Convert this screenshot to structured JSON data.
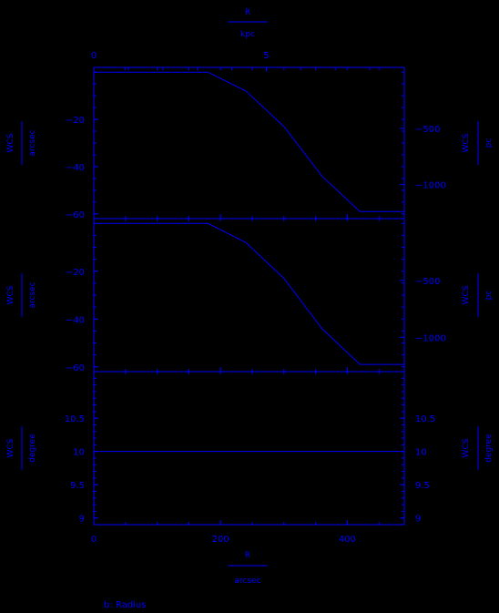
{
  "chart_data": {
    "type": "line",
    "color": "#0000ff",
    "background": "#000000",
    "caption": "b: Radius",
    "x_axis": {
      "label": "R",
      "unit": "arcsec",
      "range": [
        0,
        490
      ],
      "ticks": [
        0,
        200,
        400
      ],
      "minor_step": 50
    },
    "top_axis": {
      "label": "R",
      "unit": "kpc",
      "range": [
        0,
        9
      ],
      "ticks": [
        0,
        5
      ],
      "minor_step": 1
    },
    "panels": [
      {
        "id": "panel-1",
        "left_label": "WCS",
        "left_unit": "arcsec",
        "right_label": "WCS",
        "right_unit": "pc",
        "y_range": [
          -62,
          2
        ],
        "left_ticks": [
          -20,
          -40,
          -60
        ],
        "left_minor_step": 5,
        "right_ticks": [
          -500,
          -1000
        ],
        "right_scale": 21,
        "x": [
          0,
          60,
          120,
          180,
          240,
          300,
          360,
          420,
          490
        ],
        "y": [
          0,
          0,
          0,
          0,
          -8,
          -23,
          -44,
          -59,
          -59
        ]
      },
      {
        "id": "panel-2",
        "left_label": "WCS",
        "left_unit": "arcsec",
        "right_label": "WCS",
        "right_unit": "pc",
        "y_range": [
          -62,
          2
        ],
        "left_ticks": [
          -20,
          -40,
          -60
        ],
        "left_minor_step": 5,
        "right_ticks": [
          -500,
          -1000
        ],
        "right_scale": 21,
        "x": [
          0,
          60,
          120,
          180,
          240,
          300,
          360,
          420,
          490
        ],
        "y": [
          0,
          0,
          0,
          0,
          -8,
          -23,
          -44,
          -59,
          -59
        ]
      },
      {
        "id": "panel-3",
        "left_label": "WCS",
        "left_unit": "degree",
        "right_label": "WCS",
        "right_unit": "degree",
        "y_range": [
          8.9,
          11.2
        ],
        "left_ticks": [
          9,
          9.5,
          10,
          10.5
        ],
        "left_minor_step": 0.1,
        "right_ticks": [
          9,
          9.5,
          10,
          10.5
        ],
        "right_scale": 1,
        "x": [
          0,
          490
        ],
        "y": [
          10,
          10
        ]
      }
    ]
  }
}
